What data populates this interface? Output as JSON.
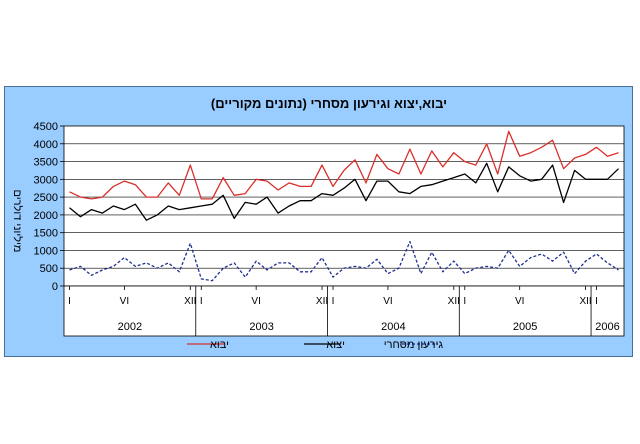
{
  "chart_data": {
    "type": "line",
    "title": "יבוא,יצוא וגירעון מסחרי (נתונים מקוריים)",
    "ylabel": "מיליוני דולרים",
    "xlabel": "",
    "ylim": [
      0,
      4500
    ],
    "yticks": [
      "0",
      "500",
      "1000",
      "1500",
      "2000",
      "2500",
      "3000",
      "3500",
      "4000",
      "4500"
    ],
    "grid": true,
    "legend_position": "bottom",
    "month_ticks": [
      {
        "label": "I",
        "index": 0
      },
      {
        "label": "VI",
        "index": 5
      },
      {
        "label": "XII",
        "index": 11
      },
      {
        "label": "I",
        "index": 12
      },
      {
        "label": "VI",
        "index": 17
      },
      {
        "label": "XII",
        "index": 23
      },
      {
        "label": "I",
        "index": 24
      },
      {
        "label": "VI",
        "index": 29
      },
      {
        "label": "XII",
        "index": 35
      },
      {
        "label": "I",
        "index": 36
      },
      {
        "label": "VI",
        "index": 41
      },
      {
        "label": "XII",
        "index": 47
      },
      {
        "label": "I",
        "index": 48
      }
    ],
    "years": [
      {
        "label": "2002",
        "start": 0,
        "end": 12
      },
      {
        "label": "2003",
        "start": 12,
        "end": 24
      },
      {
        "label": "2004",
        "start": 24,
        "end": 36
      },
      {
        "label": "2005",
        "start": 36,
        "end": 48
      },
      {
        "label": "2006",
        "start": 48,
        "end": 51
      }
    ],
    "series": [
      {
        "name": "יבוא",
        "color": "#d9302c",
        "style": "solid",
        "values": [
          2650,
          2500,
          2450,
          2500,
          2800,
          2950,
          2850,
          2500,
          2500,
          2900,
          2550,
          3400,
          2450,
          2450,
          3050,
          2550,
          2600,
          3000,
          2950,
          2700,
          2900,
          2800,
          2800,
          3400,
          2800,
          3250,
          3550,
          2900,
          3700,
          3300,
          3150,
          3850,
          3150,
          3800,
          3350,
          3750,
          3500,
          3400,
          4000,
          3150,
          4350,
          3650,
          3750,
          3900,
          4100,
          3300,
          3600,
          3700,
          3900,
          3650,
          3750
        ]
      },
      {
        "name": "יצוא",
        "color": "#000000",
        "style": "solid",
        "values": [
          2200,
          1950,
          2150,
          2050,
          2250,
          2150,
          2300,
          1850,
          2000,
          2250,
          2150,
          2200,
          2250,
          2300,
          2550,
          1900,
          2350,
          2300,
          2500,
          2050,
          2250,
          2400,
          2400,
          2600,
          2550,
          2750,
          3000,
          2400,
          2950,
          2950,
          2650,
          2600,
          2800,
          2850,
          2950,
          3050,
          3150,
          2900,
          3450,
          2650,
          3350,
          3100,
          2950,
          3000,
          3400,
          2350,
          3250,
          3000,
          3000,
          3000,
          3300
        ]
      },
      {
        "name": "גירעון מסחרי",
        "color": "#1f2f8f",
        "style": "dashed",
        "values": [
          450,
          550,
          300,
          450,
          550,
          800,
          550,
          650,
          500,
          650,
          400,
          1200,
          200,
          150,
          500,
          650,
          250,
          700,
          450,
          650,
          650,
          400,
          400,
          800,
          250,
          500,
          550,
          500,
          750,
          350,
          500,
          1250,
          350,
          950,
          400,
          700,
          350,
          500,
          550,
          500,
          1000,
          550,
          800,
          900,
          700,
          950,
          350,
          700,
          900,
          650,
          450
        ]
      }
    ]
  }
}
